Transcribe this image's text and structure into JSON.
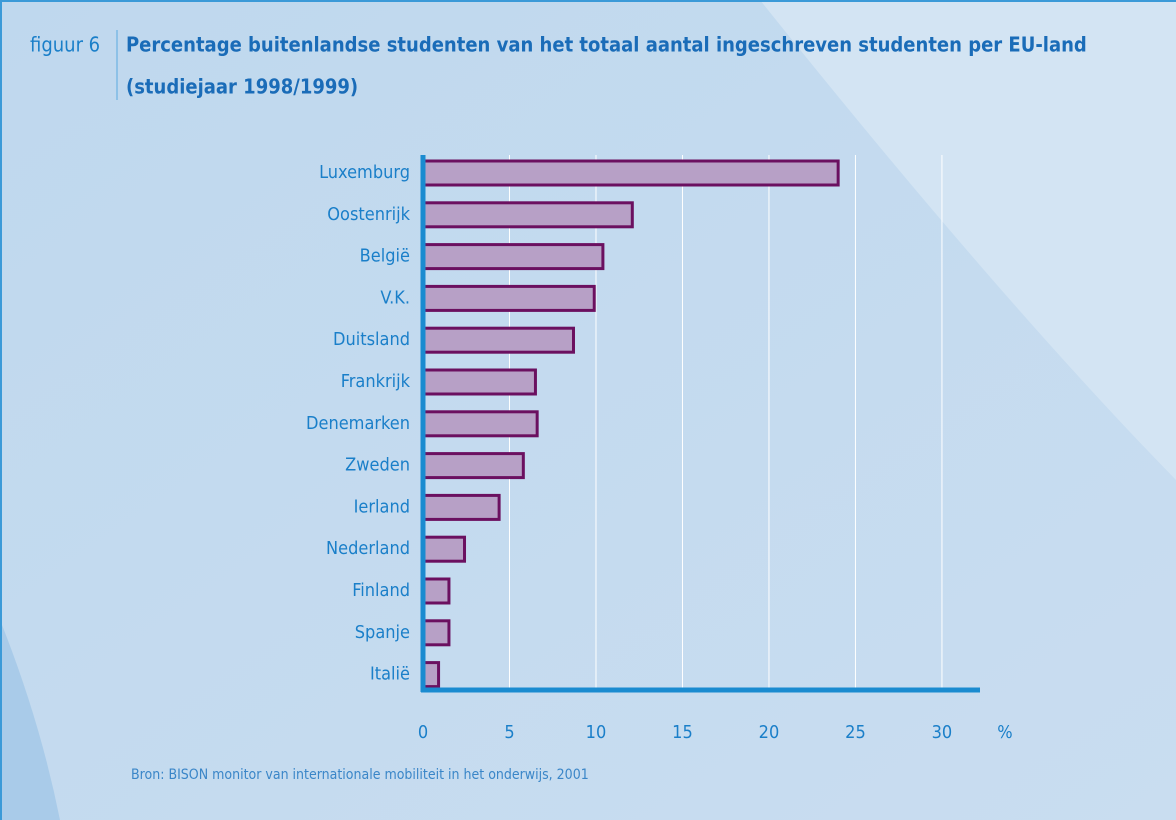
{
  "chart_data": {
    "type": "barh",
    "figure_label": "figuur 6",
    "title": "Percentage buitenlandse studenten van het totaal aantal ingeschreven studenten per EU-land",
    "subtitle": "(studiejaar 1998/1999)",
    "source": "Bron: BISON monitor van internationale mobiliteit in het onderwijs, 2001",
    "xlabel": "%",
    "categories": [
      "Luxemburg",
      "Oostenrijk",
      "België",
      "V.K.",
      "Duitsland",
      "Frankrijk",
      "Denemarken",
      "Zweden",
      "Ierland",
      "Nederland",
      "Finland",
      "Spanje",
      "Italië"
    ],
    "values": [
      24.0,
      12.1,
      10.4,
      9.9,
      8.7,
      6.5,
      6.6,
      5.8,
      4.4,
      2.4,
      1.5,
      1.5,
      0.9
    ],
    "color": "#b7a0c6",
    "edgecolor": "#6b1060",
    "xlim": [
      0,
      32.2
    ],
    "xticks": [
      0,
      5,
      10,
      15,
      20,
      25,
      30
    ],
    "grid": true
  }
}
